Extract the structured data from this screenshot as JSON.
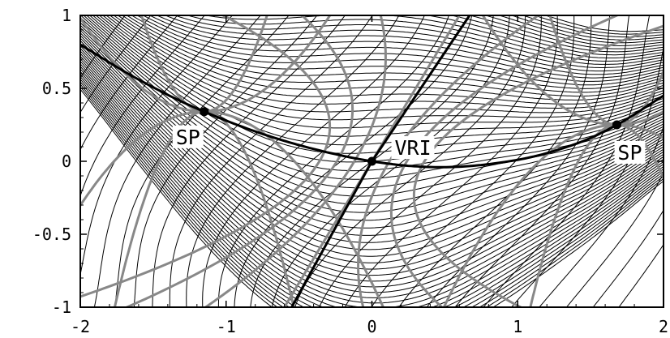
{
  "chart_data": {
    "type": "phase-portrait",
    "title": "",
    "xlabel": "",
    "ylabel": "",
    "xlim": [
      -2,
      2
    ],
    "ylim": [
      -1,
      1
    ],
    "x_ticks": [
      "-2",
      "-1",
      "0",
      "1",
      "2"
    ],
    "y_ticks": [
      "1",
      "0.5",
      "0",
      "-0.5",
      "-1"
    ],
    "x_tick_values": [
      -2,
      -1,
      0,
      1,
      2
    ],
    "y_tick_values": [
      1,
      0.5,
      0,
      -0.5,
      -1
    ],
    "points": [
      {
        "label": "SP",
        "x": -1.15,
        "y": 0.34
      },
      {
        "label": "VRI",
        "x": 0.0,
        "y": 0.0
      },
      {
        "label": "SP",
        "x": 1.68,
        "y": 0.25
      }
    ],
    "curves": {
      "valley_floor": {
        "color": "#000000",
        "points": [
          [
            -2.0,
            0.8
          ],
          [
            -1.6,
            0.56
          ],
          [
            -1.15,
            0.34
          ],
          [
            -0.6,
            0.14
          ],
          [
            0.0,
            0.0
          ],
          [
            0.5,
            -0.04
          ],
          [
            1.0,
            0.01
          ],
          [
            1.4,
            0.12
          ],
          [
            1.68,
            0.25
          ],
          [
            2.0,
            0.45
          ]
        ]
      },
      "steep_line": {
        "color": "#000000",
        "points": [
          [
            -0.55,
            -1.0
          ],
          [
            0.0,
            0.0
          ],
          [
            0.67,
            1.0
          ]
        ]
      },
      "separatrix_color": "#888888",
      "flow_line_color": "#000000"
    }
  }
}
